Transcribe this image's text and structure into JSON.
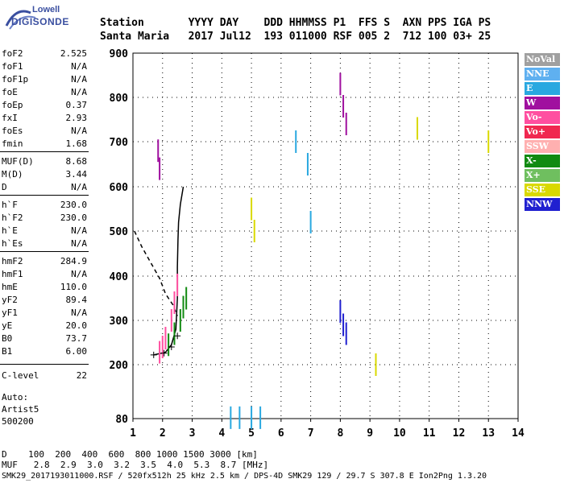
{
  "logo": {
    "line1": "Lowell",
    "line2": "DIGISONDE"
  },
  "header": {
    "labels": "Station       YYYY DAY    DDD HHMMSS P1  FFS S  AXN PPS IGA PS",
    "values": "Santa Maria   2017 Jul12  193 011000 RSF 005 2  712 100 03+ 25"
  },
  "params": [
    {
      "name": "foF2",
      "value": "2.525"
    },
    {
      "name": "foF1",
      "value": "N/A"
    },
    {
      "name": "foF1p",
      "value": "N/A"
    },
    {
      "name": "foE",
      "value": "N/A"
    },
    {
      "name": "foEp",
      "value": "0.37"
    },
    {
      "name": "fxI",
      "value": "2.93"
    },
    {
      "name": "foEs",
      "value": "N/A"
    },
    {
      "name": "fmin",
      "value": "1.68"
    },
    {
      "name": "MUF(D)",
      "value": "8.68"
    },
    {
      "name": "M(D)",
      "value": "3.44"
    },
    {
      "name": "D",
      "value": "N/A"
    },
    {
      "name": "h`F",
      "value": "230.0"
    },
    {
      "name": "h`F2",
      "value": "230.0"
    },
    {
      "name": "h`E",
      "value": "N/A"
    },
    {
      "name": "h`Es",
      "value": "N/A"
    },
    {
      "name": "hmF2",
      "value": "284.9"
    },
    {
      "name": "hmF1",
      "value": "N/A"
    },
    {
      "name": "hmE",
      "value": "110.0"
    },
    {
      "name": "yF2",
      "value": "89.4"
    },
    {
      "name": "yF1",
      "value": "N/A"
    },
    {
      "name": "yE",
      "value": "20.0"
    },
    {
      "name": "B0",
      "value": "73.7"
    },
    {
      "name": "B1",
      "value": "6.00"
    },
    {
      "name": "C-level",
      "value": "22"
    }
  ],
  "auto": {
    "line1": "Auto:",
    "line2": "Artist5",
    "line3": "500200"
  },
  "legend": [
    {
      "label": "NoVal",
      "color": "#a0a0a0"
    },
    {
      "label": "NNE",
      "color": "#5fb0f0"
    },
    {
      "label": "E",
      "color": "#29a8e0"
    },
    {
      "label": "W",
      "color": "#a0109f"
    },
    {
      "label": "Vo-",
      "color": "#ff4fa0"
    },
    {
      "label": "Vo+",
      "color": "#f02850"
    },
    {
      "label": "SSW",
      "color": "#ffb0b0"
    },
    {
      "label": "X-",
      "color": "#118a11"
    },
    {
      "label": "X+",
      "color": "#6fbf5f"
    },
    {
      "label": "SSE",
      "color": "#d9d900"
    },
    {
      "label": "NNW",
      "color": "#2020d0"
    }
  ],
  "bottom": {
    "d_line": "D    100  200  400  600  800 1000 1500 3000 [km]",
    "muf_line": "MUF   2.8  2.9  3.0  3.2  3.5  4.0  5.3  8.7 [MHz]",
    "footer": "SMK29_2017193011000.RSF / 520fx512h 25 kHz 2.5 km / DPS-4D SMK29 129 / 29.7 S 307.8 E Ion2Png 1.3.20"
  },
  "chart_data": {
    "type": "scatter",
    "xlabel": "",
    "ylabel": "",
    "xlim": [
      1,
      14
    ],
    "ylim": [
      80,
      900
    ],
    "x_ticks": [
      1,
      2,
      3,
      4,
      5,
      6,
      7,
      8,
      9,
      10,
      11,
      12,
      13,
      14
    ],
    "y_ticks": [
      80,
      200,
      300,
      400,
      500,
      600,
      700,
      800,
      900
    ],
    "grid": "dotted",
    "legend_position": "right",
    "series": [
      {
        "name": "trace_profile",
        "color": "#000000",
        "x": [
          1.7,
          2.1,
          2.3,
          2.45,
          2.5,
          2.5,
          2.52,
          2.54,
          2.6,
          2.7
        ],
        "y": [
          222,
          228,
          245,
          280,
          350,
          420,
          480,
          520,
          560,
          600
        ]
      },
      {
        "name": "dashed_profile",
        "color": "#000000",
        "x": [
          1.05,
          1.3,
          1.6,
          1.9,
          2.1,
          2.35,
          2.5
        ],
        "y": [
          500,
          465,
          430,
          395,
          360,
          335,
          310
        ]
      },
      {
        "name": "X-",
        "color": "#118a11",
        "x": [
          2.2,
          2.4,
          2.6,
          2.7,
          2.8
        ],
        "y": [
          245,
          270,
          300,
          330,
          350
        ]
      },
      {
        "name": "Vo-",
        "color": "#ff4fa0",
        "x": [
          1.9,
          2.0,
          2.1,
          2.3,
          2.4,
          2.5
        ],
        "y": [
          228,
          240,
          260,
          300,
          340,
          380
        ]
      },
      {
        "name": "E",
        "color": "#29a8e0",
        "x": [
          4.3,
          4.6,
          5.0,
          5.3,
          6.5,
          6.9,
          7.0
        ],
        "y": [
          82,
          82,
          82,
          82,
          700,
          650,
          520
        ]
      },
      {
        "name": "W",
        "color": "#a0109f",
        "x": [
          1.85,
          1.9,
          8.0,
          8.1,
          8.2
        ],
        "y": [
          680,
          640,
          830,
          780,
          740
        ]
      },
      {
        "name": "SSE",
        "color": "#d9d900",
        "x": [
          5.0,
          5.1,
          9.2,
          10.6,
          13.0
        ],
        "y": [
          550,
          500,
          200,
          730,
          700
        ]
      },
      {
        "name": "NNW",
        "color": "#2020d0",
        "x": [
          8.0,
          8.1,
          8.2
        ],
        "y": [
          320,
          290,
          270
        ]
      }
    ]
  }
}
